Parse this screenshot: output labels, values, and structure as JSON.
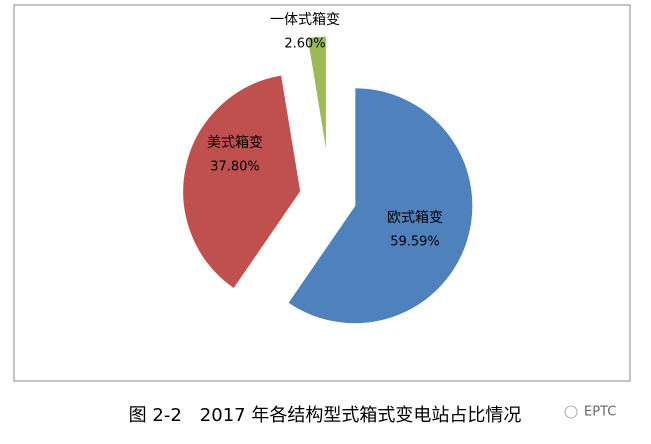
{
  "chart_data": {
    "type": "pie",
    "title": "图 2-2　2017 年各结构型式箱式变电站占比情况",
    "watermark": "EPTC",
    "categories": [
      "欧式箱变",
      "美式箱变",
      "一体式箱变"
    ],
    "values": [
      59.59,
      37.8,
      2.6
    ],
    "value_labels": [
      "59.59%",
      "37.80%",
      "2.60%"
    ],
    "colors": [
      "#4f81bd",
      "#c0504d",
      "#9bbb59"
    ]
  }
}
